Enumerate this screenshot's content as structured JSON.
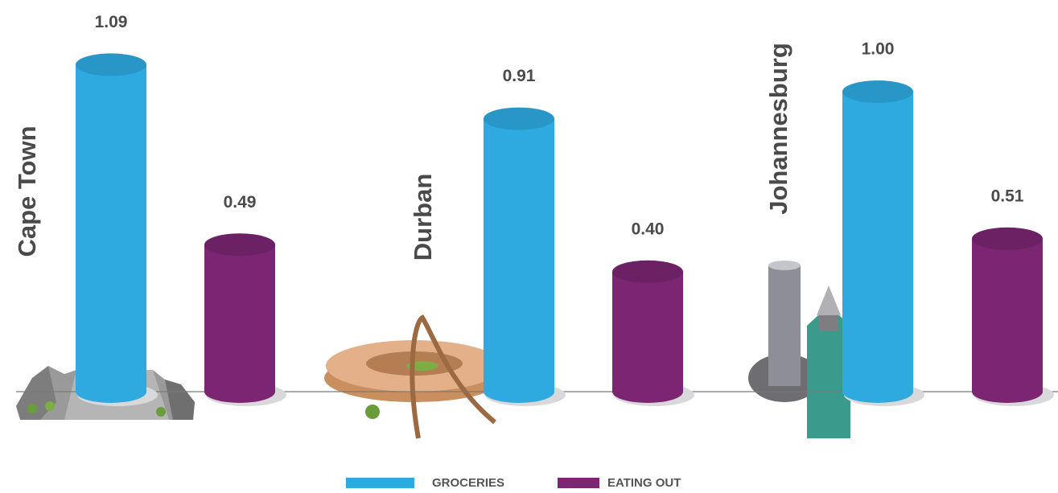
{
  "chart_data": {
    "type": "bar",
    "categories": [
      "Cape Town",
      "Durban",
      "Johannesburg"
    ],
    "series": [
      {
        "name": "GROCERIES",
        "color": "#2eaae1",
        "values": [
          1.09,
          0.91,
          1.0
        ],
        "value_labels": [
          "1.09",
          "0.91",
          "1.00"
        ]
      },
      {
        "name": "EATING OUT",
        "color": "#7b2573",
        "values": [
          0.49,
          0.4,
          0.51
        ],
        "value_labels": [
          "0.49",
          "0.40",
          "0.51"
        ]
      }
    ]
  }
}
